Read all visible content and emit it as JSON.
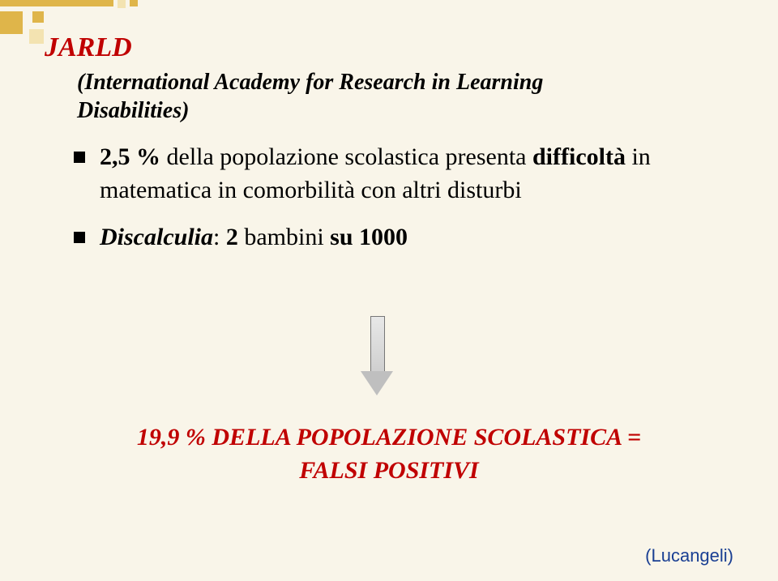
{
  "title": "JARLD",
  "subtitle_line1": "(International Academy for Research in Learning",
  "subtitle_line2": "Disabilities)",
  "bullets": [
    {
      "stat": "2,5 %",
      "text_a": " della popolazione scolastica presenta ",
      "strong_b": "difficoltà",
      "text_c": " in matematica in comorbilità con altri disturbi"
    }
  ],
  "bullet2": {
    "label": "Discalculia",
    "colon": ": ",
    "num1": "2",
    "mid": " bambini ",
    "su": "su",
    "sp": " ",
    "num2": "1000"
  },
  "conclusion": {
    "line1": "19,9 % DELLA POPOLAZIONE SCOLASTICA =",
    "line2": "FALSI POSITIVI"
  },
  "attribution": "(Lucangeli)",
  "colors": {
    "background": "#f9f5e9",
    "accent_title": "#c00000",
    "attribution": "#1a3f93",
    "deco_dark": "#dfb54a",
    "deco_light": "#f3e3b1"
  }
}
